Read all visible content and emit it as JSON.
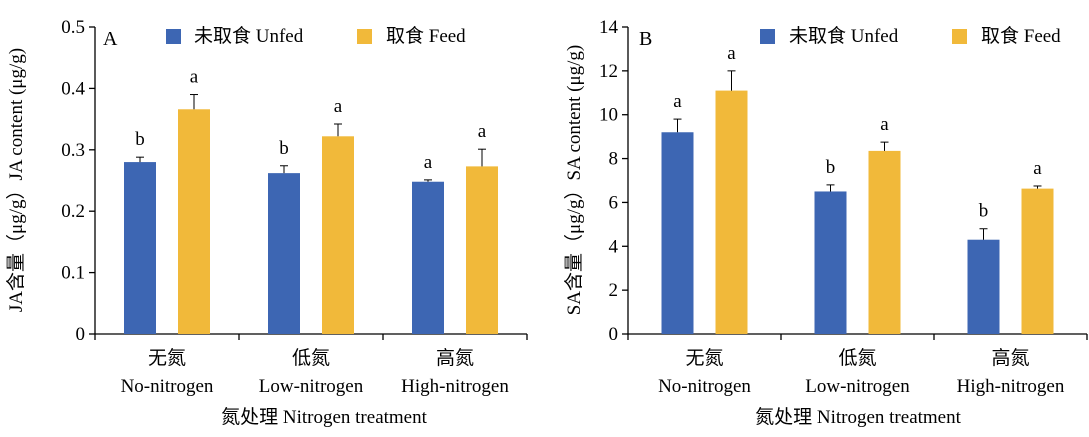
{
  "chart_data": [
    {
      "type": "bar",
      "panel_label": "A",
      "title": "",
      "categories": [
        "无氮",
        "低氮",
        "高氮"
      ],
      "categories_en": [
        "No-nitrogen",
        "Low-nitrogen",
        "High-nitrogen"
      ],
      "xlabel": "氮处理 Nitrogen treatment",
      "ylabel": "JA含量（μg/g）JA content (μg/g)",
      "ylim": [
        0,
        0.5
      ],
      "yticks": [
        "0",
        "0.1",
        "0.2",
        "0.3",
        "0.4",
        "0.5"
      ],
      "tick_values": [
        0,
        0.1,
        0.2,
        0.3,
        0.4,
        0.5
      ],
      "legend_position": "top",
      "grid": false,
      "series": [
        {
          "name": "未取食 Unfed",
          "color": "#3d66b3",
          "values": [
            0.28,
            0.262,
            0.248
          ],
          "errors": [
            0.008,
            0.012,
            0.003
          ],
          "letters": [
            "b",
            "b",
            "a"
          ]
        },
        {
          "name": "取食 Feed",
          "color": "#f1b93a",
          "values": [
            0.366,
            0.322,
            0.273
          ],
          "errors": [
            0.024,
            0.02,
            0.028
          ],
          "letters": [
            "a",
            "a",
            "a"
          ]
        }
      ]
    },
    {
      "type": "bar",
      "panel_label": "B",
      "title": "",
      "categories": [
        "无氮",
        "低氮",
        "高氮"
      ],
      "categories_en": [
        "No-nitrogen",
        "Low-nitrogen",
        "High-nitrogen"
      ],
      "xlabel": "氮处理 Nitrogen treatment",
      "ylabel": "SA含量（μg/g）SA content (μg/g)",
      "ylim": [
        0,
        14
      ],
      "yticks": [
        "0",
        "2",
        "4",
        "6",
        "8",
        "10",
        "12",
        "14"
      ],
      "tick_values": [
        0,
        2,
        4,
        6,
        8,
        10,
        12,
        14
      ],
      "legend_position": "top",
      "grid": false,
      "series": [
        {
          "name": "未取食 Unfed",
          "color": "#3d66b3",
          "values": [
            9.2,
            6.5,
            4.3
          ],
          "errors": [
            0.6,
            0.3,
            0.5
          ],
          "letters": [
            "a",
            "b",
            "b"
          ]
        },
        {
          "name": "取食 Feed",
          "color": "#f1b93a",
          "values": [
            11.1,
            8.35,
            6.63
          ],
          "errors": [
            0.9,
            0.4,
            0.12
          ],
          "letters": [
            "a",
            "a",
            "a"
          ]
        }
      ]
    }
  ]
}
